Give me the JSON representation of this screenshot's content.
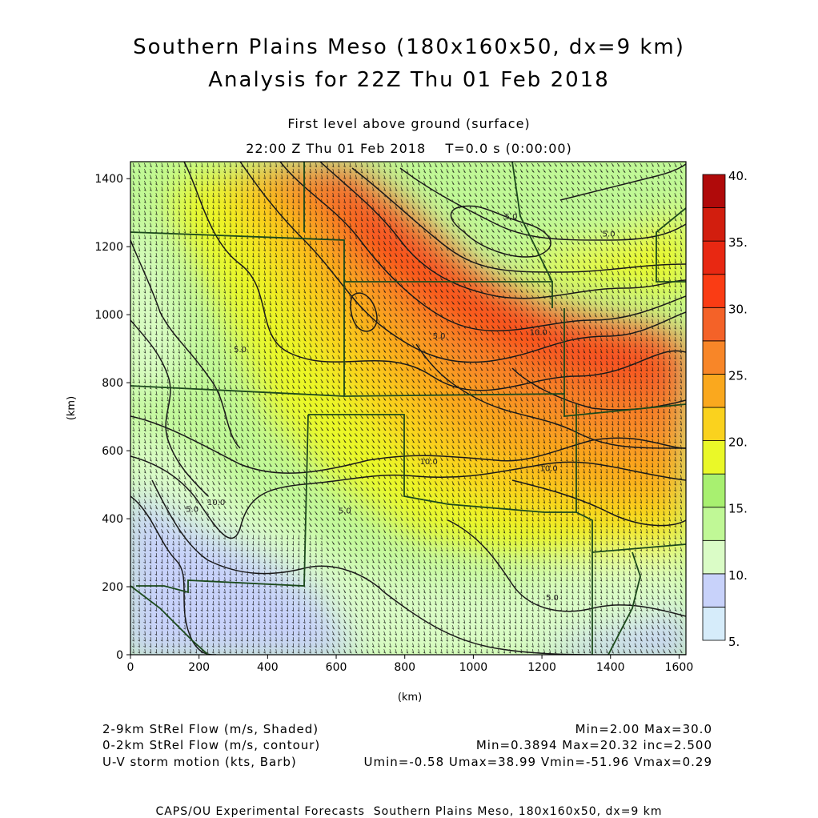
{
  "header": {
    "title_line1": "Southern Plains Meso (180x160x50, dx=9 km)",
    "title_line2": "Analysis for 22Z Thu 01 Feb 2018",
    "subtitle_line1": "First level above ground (surface)",
    "subtitle_line2": "22:00 Z Thu 01 Feb 2018    T=0.0 s (0:00:00)"
  },
  "chart_data": {
    "type": "heatmap",
    "xlabel": "(km)",
    "ylabel": "(km)",
    "xlim": [
      0,
      1620
    ],
    "ylim": [
      0,
      1450
    ],
    "x_ticks": [
      0,
      200,
      400,
      600,
      800,
      1000,
      1200,
      1400,
      1600
    ],
    "y_ticks": [
      0,
      200,
      400,
      600,
      800,
      1000,
      1200,
      1400
    ],
    "colorbar": {
      "levels": [
        5,
        7.5,
        10,
        12.5,
        15,
        17.5,
        20,
        22.5,
        25,
        27.5,
        30,
        32.5,
        35,
        37.5,
        40
      ],
      "tick_labels": [
        "5.",
        "10.",
        "15.",
        "20.",
        "25.",
        "30.",
        "35.",
        "40."
      ],
      "tick_values": [
        5,
        10,
        15,
        20,
        25,
        30,
        35,
        40
      ],
      "colors": [
        "#d6ecfa",
        "#c8d2fa",
        "#dafcc6",
        "#c0f896",
        "#a8f070",
        "#eaf828",
        "#fad21e",
        "#faa81e",
        "#f88628",
        "#f46228",
        "#fa3c14",
        "#e82812",
        "#d21e0e",
        "#b00a0a"
      ]
    },
    "contour_labels": [
      {
        "text": "5.0",
        "x": 1110,
        "y": 1280
      },
      {
        "text": "5.0",
        "x": 1395,
        "y": 1230
      },
      {
        "text": "10.0",
        "x": 870,
        "y": 560
      },
      {
        "text": "10.0",
        "x": 1220,
        "y": 540
      },
      {
        "text": "5.0",
        "x": 625,
        "y": 415
      },
      {
        "text": "5.0",
        "x": 180,
        "y": 420
      },
      {
        "text": "10.0",
        "x": 250,
        "y": 440
      },
      {
        "text": "5.0",
        "x": 1230,
        "y": 160
      },
      {
        "text": "5.0",
        "x": 900,
        "y": 930
      },
      {
        "text": "10.0",
        "x": 1190,
        "y": 940
      },
      {
        "text": "5.0",
        "x": 320,
        "y": 890
      }
    ]
  },
  "legend": {
    "line1_left": "2-9km StRel Flow (m/s, Shaded)",
    "line1_right": "Min=2.00 Max=30.0",
    "line2_left": "0-2km StRel Flow (m/s, contour)",
    "line2_right": "Min=0.3894 Max=20.32 inc=2.500",
    "line3_left": "U-V storm motion (kts, Barb)",
    "line3_right": "Umin=-0.58 Umax=38.99 Vmin=-51.96 Vmax=0.29"
  },
  "footer": {
    "text": "CAPS/OU Experimental Forecasts  Southern Plains Meso, 180x160x50, dx=9 km"
  }
}
